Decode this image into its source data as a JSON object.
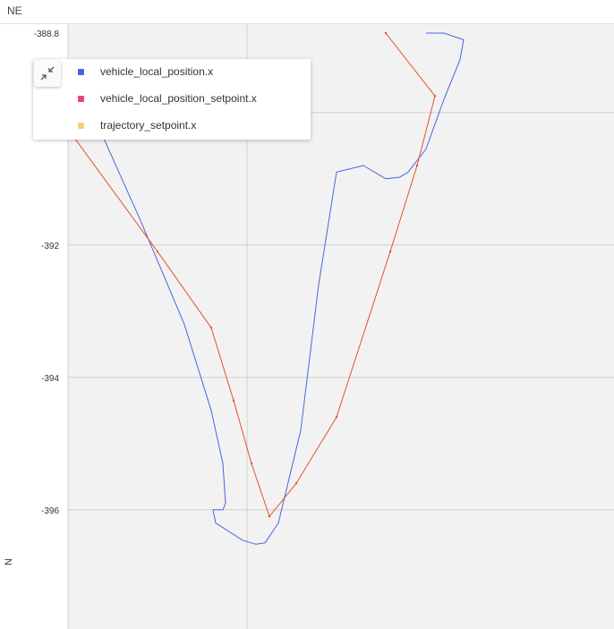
{
  "panel": {
    "title": "NE"
  },
  "colors": {
    "vehicle_local_position": "#4a63e0",
    "vehicle_local_position_setpoint": "#e8486a",
    "trajectory_setpoint": "#f2d46a",
    "setpoint_line": "#e2542c",
    "plot_bg": "#f2f2f2",
    "grid": "#d0d0d0"
  },
  "legend": {
    "collapse_icon": "collapse-arrows-icon",
    "items": [
      {
        "label": "vehicle_local_position.x",
        "color": "#4a63e0"
      },
      {
        "label": "vehicle_local_position_setpoint.x",
        "color": "#e8486a"
      },
      {
        "label": "trajectory_setpoint.x",
        "color": "#f2d46a"
      }
    ]
  },
  "chart_data": {
    "type": "line",
    "title": "NE",
    "xlabel": "",
    "ylabel": "N",
    "ylim": [
      -397.8,
      -388.8
    ],
    "yticks": [
      "-388.8",
      "-390",
      "-392",
      "-394",
      "-396"
    ],
    "ytick_values": [
      -388.8,
      -390,
      -392,
      -394,
      -396
    ],
    "xlim": [
      0,
      6.1
    ],
    "xgrid": [
      0,
      2
    ],
    "grid": true,
    "legend_position": "top-left",
    "series": [
      {
        "name": "vehicle_local_position.x",
        "x": [
          0.27,
          0.8,
          1.3,
          1.6,
          1.73,
          1.76,
          1.73,
          1.62,
          1.65,
          1.95,
          2.1,
          2.2,
          2.35,
          2.6,
          2.8,
          3.0,
          3.3,
          3.55,
          3.7,
          3.8,
          4.0,
          4.2,
          4.38,
          4.42,
          4.2,
          4.0
        ],
        "y": [
          -390,
          -391.6,
          -393.2,
          -394.5,
          -395.3,
          -395.9,
          -396.0,
          -396.0,
          -396.2,
          -396.46,
          -396.52,
          -396.5,
          -396.2,
          -394.8,
          -392.6,
          -390.9,
          -390.8,
          -391.0,
          -390.98,
          -390.9,
          -390.55,
          -389.8,
          -389.2,
          -388.9,
          -388.8,
          -388.8
        ]
      },
      {
        "name": "vehicle_local_position_setpoint.x",
        "x": [
          0,
          1.0,
          1.6,
          1.85,
          2.05,
          2.25,
          2.55,
          3.0,
          3.6,
          3.9,
          4.1,
          3.55
        ],
        "y": [
          -390.25,
          -392.1,
          -393.25,
          -394.35,
          -395.3,
          -396.1,
          -395.6,
          -394.6,
          -392.1,
          -390.8,
          -389.75,
          -388.8
        ]
      }
    ]
  }
}
